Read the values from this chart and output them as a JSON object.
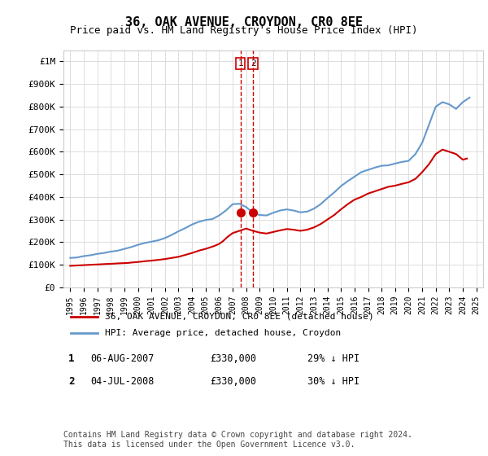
{
  "title": "36, OAK AVENUE, CROYDON, CR0 8EE",
  "subtitle": "Price paid vs. HM Land Registry's House Price Index (HPI)",
  "ylabel": "",
  "ylim": [
    0,
    1050000
  ],
  "yticks": [
    0,
    100000,
    200000,
    300000,
    400000,
    500000,
    600000,
    700000,
    800000,
    900000,
    1000000
  ],
  "ytick_labels": [
    "£0",
    "£100K",
    "£200K",
    "£300K",
    "£400K",
    "£500K",
    "£600K",
    "£700K",
    "£800K",
    "£900K",
    "£1M"
  ],
  "hpi_years": [
    1995,
    1995.5,
    1996,
    1996.5,
    1997,
    1997.5,
    1998,
    1998.5,
    1999,
    1999.5,
    2000,
    2000.5,
    2001,
    2001.5,
    2002,
    2002.5,
    2003,
    2003.5,
    2004,
    2004.5,
    2005,
    2005.5,
    2006,
    2006.5,
    2007,
    2007.5,
    2008,
    2008.5,
    2009,
    2009.5,
    2010,
    2010.5,
    2011,
    2011.5,
    2012,
    2012.5,
    2013,
    2013.5,
    2014,
    2014.5,
    2015,
    2015.5,
    2016,
    2016.5,
    2017,
    2017.5,
    2018,
    2018.5,
    2019,
    2019.5,
    2020,
    2020.5,
    2021,
    2021.5,
    2022,
    2022.5,
    2023,
    2023.5,
    2024,
    2024.5
  ],
  "hpi_values": [
    130000,
    132000,
    138000,
    142000,
    148000,
    152000,
    158000,
    162000,
    170000,
    178000,
    188000,
    196000,
    202000,
    208000,
    218000,
    232000,
    248000,
    262000,
    278000,
    290000,
    298000,
    302000,
    318000,
    340000,
    368000,
    370000,
    355000,
    330000,
    320000,
    318000,
    330000,
    340000,
    345000,
    340000,
    332000,
    335000,
    348000,
    368000,
    395000,
    420000,
    448000,
    470000,
    490000,
    510000,
    520000,
    530000,
    538000,
    540000,
    548000,
    555000,
    560000,
    590000,
    640000,
    720000,
    800000,
    820000,
    810000,
    790000,
    820000,
    840000
  ],
  "price_paid_years": [
    1995,
    1995.3,
    1995.6,
    1996,
    1996.3,
    1996.6,
    1997,
    1997.3,
    1997.6,
    1998,
    1998.3,
    1998.6,
    1999,
    1999.3,
    1999.6,
    2000,
    2000.3,
    2000.6,
    2001,
    2001.3,
    2001.6,
    2002,
    2002.3,
    2002.6,
    2003,
    2003.3,
    2003.6,
    2004,
    2004.3,
    2004.6,
    2005,
    2005.3,
    2005.6,
    2006,
    2006.3,
    2006.6,
    2007,
    2007.5,
    2008,
    2008.5,
    2009,
    2009.5,
    2010,
    2010.5,
    2011,
    2011.5,
    2012,
    2012.5,
    2013,
    2013.5,
    2014,
    2014.5,
    2015,
    2015.5,
    2016,
    2016.5,
    2017,
    2017.5,
    2018,
    2018.5,
    2019,
    2019.5,
    2020,
    2020.5,
    2021,
    2021.5,
    2022,
    2022.5,
    2023,
    2023.5,
    2024,
    2024.3
  ],
  "price_paid_values": [
    95000,
    96000,
    97000,
    98000,
    99000,
    100000,
    101000,
    102000,
    103000,
    104000,
    105000,
    106000,
    107000,
    108000,
    110000,
    112000,
    114000,
    116000,
    118000,
    120000,
    122000,
    125000,
    128000,
    131000,
    135000,
    140000,
    145000,
    152000,
    158000,
    164000,
    170000,
    176000,
    182000,
    192000,
    205000,
    222000,
    240000,
    250000,
    260000,
    250000,
    242000,
    238000,
    245000,
    252000,
    258000,
    255000,
    250000,
    255000,
    265000,
    280000,
    300000,
    320000,
    345000,
    368000,
    388000,
    400000,
    415000,
    425000,
    435000,
    445000,
    450000,
    458000,
    465000,
    480000,
    510000,
    545000,
    590000,
    610000,
    600000,
    590000,
    565000,
    570000
  ],
  "transaction1_year": 2007.586,
  "transaction1_price": 330000,
  "transaction2_year": 2008.5,
  "transaction2_price": 330000,
  "line_color_red": "#cc0000",
  "line_color_blue": "#6699cc",
  "marker_color_red": "#cc0000",
  "vline_color": "#cc0000",
  "legend_label_red": "36, OAK AVENUE, CROYDON, CR0 8EE (detached house)",
  "legend_label_blue": "HPI: Average price, detached house, Croydon",
  "table_rows": [
    {
      "num": "1",
      "date": "06-AUG-2007",
      "price": "£330,000",
      "hpi": "29% ↓ HPI"
    },
    {
      "num": "2",
      "date": "04-JUL-2008",
      "price": "£330,000",
      "hpi": "30% ↓ HPI"
    }
  ],
  "footer": "Contains HM Land Registry data © Crown copyright and database right 2024.\nThis data is licensed under the Open Government Licence v3.0.",
  "bg_color": "#ffffff",
  "grid_color": "#dddddd",
  "xlim": [
    1994.5,
    2025.5
  ]
}
